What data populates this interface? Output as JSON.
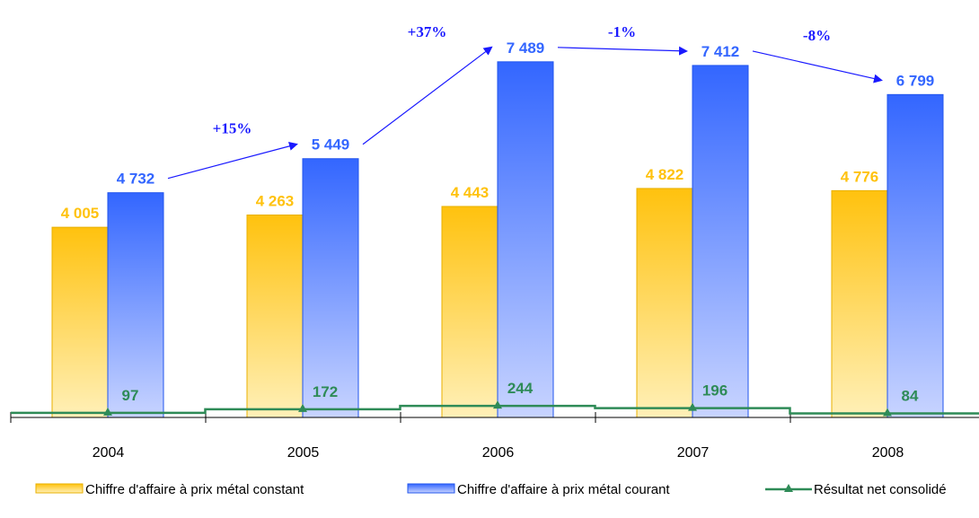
{
  "chart_data": {
    "type": "bar",
    "categories": [
      "2004",
      "2005",
      "2006",
      "2007",
      "2008"
    ],
    "series": [
      {
        "name": "Chiffre d'affaire à prix métal constant",
        "kind": "bar",
        "values": [
          4005,
          4263,
          4443,
          4822,
          4776
        ],
        "labels": [
          "4 005",
          "4 263",
          "4 443",
          "4 822",
          "4 776"
        ],
        "color": "#FFC20E"
      },
      {
        "name": "Chiffre d'affaire à prix métal courant",
        "kind": "bar",
        "values": [
          4732,
          5449,
          7489,
          7412,
          6799
        ],
        "labels": [
          "4 732",
          "5 449",
          "7 489",
          "7 412",
          "6 799"
        ],
        "color": "#3366FF"
      },
      {
        "name": "Résultat net consolidé",
        "kind": "line",
        "values": [
          97,
          172,
          244,
          196,
          84
        ],
        "labels": [
          "97",
          "172",
          "244",
          "196",
          "84"
        ],
        "color": "#2E8B57"
      }
    ],
    "growth_annotations": [
      {
        "from": 0,
        "to": 1,
        "label": "+15%"
      },
      {
        "from": 1,
        "to": 2,
        "label": "+37%"
      },
      {
        "from": 2,
        "to": 3,
        "label": "-1%"
      },
      {
        "from": 3,
        "to": 4,
        "label": "-8%"
      }
    ],
    "ylim": [
      0,
      8000
    ],
    "grid": false,
    "legend_position": "bottom",
    "title": "",
    "xlabel": "",
    "ylabel": ""
  }
}
